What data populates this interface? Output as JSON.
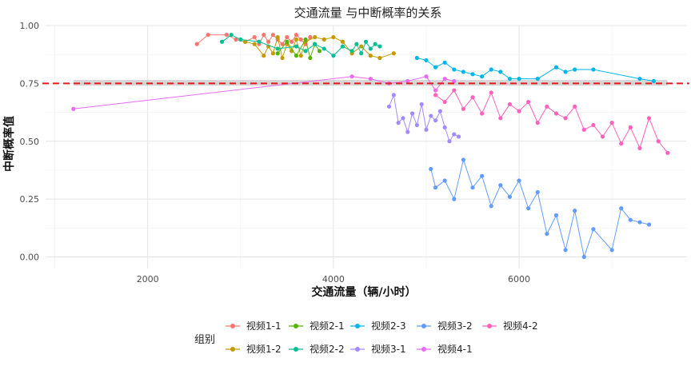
{
  "chart_data": {
    "type": "line",
    "title": "交通流量 与中断概率的关系",
    "xlabel": "交通流量（辆/小时）",
    "ylabel": "中断概率值",
    "xlim": [
      900,
      7800
    ],
    "ylim": [
      -0.05,
      1.0
    ],
    "xticks": [
      2000,
      4000,
      6000
    ],
    "xtick_labels": [
      "2000",
      "4000",
      "6000"
    ],
    "yticks": [
      0.0,
      0.25,
      0.5,
      0.75,
      1.0
    ],
    "ytick_labels": [
      "0.00",
      "0.25",
      "0.50",
      "0.75",
      "1.00"
    ],
    "grid": true,
    "reference_line": {
      "y": 0.75,
      "color": "#e41a1c",
      "style": "dashed"
    },
    "reference_band": {
      "y_range": [
        0.74,
        0.765
      ],
      "x_range": [
        1200,
        7600
      ],
      "color": "#bdbdbd"
    },
    "legend": {
      "title": "组别",
      "position": "bottom"
    },
    "series": [
      {
        "name": "视频1-1",
        "color": "#F8766D",
        "x": [
          2530,
          2650,
          2850,
          2950,
          3050,
          3150,
          3200,
          3250,
          3300,
          3350,
          3400,
          3450,
          3500,
          3550,
          3600,
          3650,
          3700,
          3750
        ],
        "y": [
          0.92,
          0.96,
          0.96,
          0.94,
          0.93,
          0.95,
          0.92,
          0.96,
          0.93,
          0.96,
          0.94,
          0.92,
          0.95,
          0.93,
          0.96,
          0.94,
          0.92,
          0.95
        ]
      },
      {
        "name": "视频1-2",
        "color": "#C49A00",
        "x": [
          3050,
          3150,
          3250,
          3300,
          3350,
          3400,
          3450,
          3500,
          3550,
          3600,
          3650,
          3700,
          3800,
          3900,
          4000,
          4100,
          4200,
          4300,
          4400,
          4500,
          4650
        ],
        "y": [
          0.93,
          0.92,
          0.87,
          0.91,
          0.88,
          0.95,
          0.86,
          0.92,
          0.89,
          0.94,
          0.87,
          0.93,
          0.95,
          0.94,
          0.95,
          0.93,
          0.88,
          0.91,
          0.87,
          0.86,
          0.88
        ]
      },
      {
        "name": "视频2-1",
        "color": "#53B400",
        "x": [
          3400,
          3500,
          3600,
          3700,
          3750,
          3800,
          3850
        ],
        "y": [
          0.88,
          0.93,
          0.87,
          0.94,
          0.86,
          0.92,
          0.89
        ]
      },
      {
        "name": "视频2-2",
        "color": "#00C094",
        "x": [
          2800,
          2900,
          3000,
          3200,
          3400,
          3600,
          3700,
          3800,
          3900,
          4000,
          4100,
          4200,
          4250,
          4300,
          4350,
          4400,
          4450,
          4500
        ],
        "y": [
          0.93,
          0.96,
          0.94,
          0.93,
          0.9,
          0.91,
          0.89,
          0.92,
          0.9,
          0.87,
          0.91,
          0.89,
          0.92,
          0.88,
          0.93,
          0.9,
          0.92,
          0.91
        ]
      },
      {
        "name": "视频2-3",
        "color": "#00B6EB",
        "x": [
          4900,
          5000,
          5100,
          5200,
          5300,
          5400,
          5500,
          5600,
          5700,
          5800,
          5900,
          6000,
          6200,
          6400,
          6500,
          6600,
          6800,
          7300,
          7450
        ],
        "y": [
          0.86,
          0.85,
          0.82,
          0.84,
          0.81,
          0.8,
          0.79,
          0.78,
          0.81,
          0.8,
          0.77,
          0.77,
          0.77,
          0.82,
          0.8,
          0.81,
          0.81,
          0.77,
          0.76
        ]
      },
      {
        "name": "视频3-1",
        "color": "#A58AFF",
        "x": [
          4600,
          4650,
          4700,
          4750,
          4800,
          4850,
          4900,
          4950,
          5000,
          5050,
          5100,
          5150,
          5200,
          5250,
          5300,
          5350
        ],
        "y": [
          0.65,
          0.7,
          0.58,
          0.6,
          0.54,
          0.62,
          0.57,
          0.66,
          0.55,
          0.61,
          0.59,
          0.63,
          0.56,
          0.5,
          0.53,
          0.52
        ]
      },
      {
        "name": "视频3-2",
        "color": "#619CFF",
        "x": [
          5050,
          5100,
          5200,
          5300,
          5400,
          5500,
          5600,
          5700,
          5800,
          5900,
          6000,
          6100,
          6200,
          6300,
          6400,
          6500,
          6600,
          6700,
          6800,
          7000,
          7100,
          7200,
          7300,
          7400
        ],
        "y": [
          0.38,
          0.3,
          0.33,
          0.25,
          0.42,
          0.3,
          0.35,
          0.22,
          0.31,
          0.26,
          0.33,
          0.21,
          0.28,
          0.1,
          0.18,
          0.03,
          0.2,
          0.0,
          0.12,
          0.03,
          0.21,
          0.16,
          0.15,
          0.14
        ]
      },
      {
        "name": "视频4-1",
        "color": "#E76BF3",
        "x": [
          1200,
          4200,
          4400,
          4600,
          4800,
          5000,
          5100,
          5200,
          5300
        ],
        "y": [
          0.64,
          0.78,
          0.77,
          0.75,
          0.76,
          0.78,
          0.72,
          0.77,
          0.76
        ]
      },
      {
        "name": "视频4-2",
        "color": "#FF62BC",
        "x": [
          5100,
          5200,
          5300,
          5400,
          5500,
          5600,
          5700,
          5800,
          5900,
          6000,
          6100,
          6200,
          6300,
          6400,
          6500,
          6600,
          6700,
          6800,
          6900,
          7000,
          7100,
          7200,
          7300,
          7400,
          7500,
          7600
        ],
        "y": [
          0.7,
          0.67,
          0.72,
          0.64,
          0.69,
          0.62,
          0.71,
          0.6,
          0.66,
          0.63,
          0.67,
          0.58,
          0.65,
          0.62,
          0.6,
          0.65,
          0.55,
          0.57,
          0.52,
          0.58,
          0.49,
          0.56,
          0.47,
          0.6,
          0.5,
          0.45
        ]
      }
    ]
  }
}
